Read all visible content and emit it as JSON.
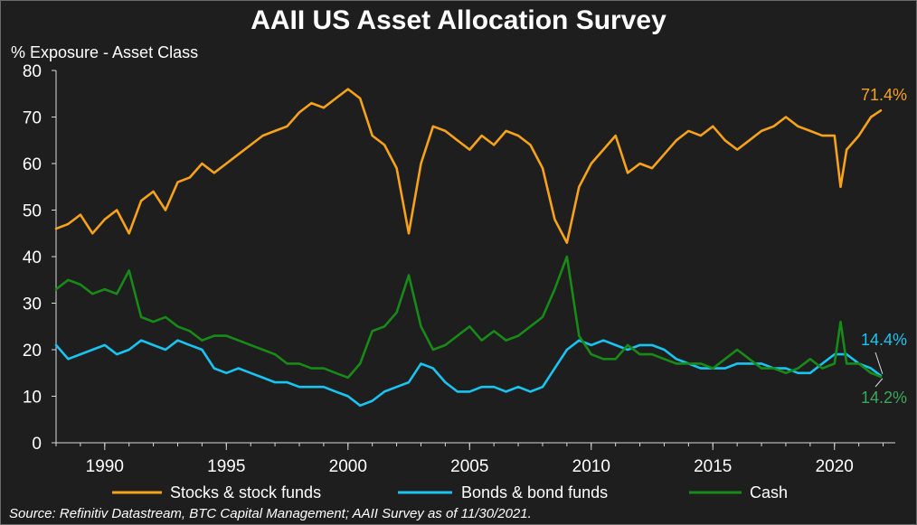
{
  "header": {
    "title": "AAII US Asset Allocation Survey",
    "subtitle": "% Exposure - Asset Class"
  },
  "footer": {
    "source": "Source: Refinitiv Datastream, BTC Capital Management; AAII Survey as of 11/30/2021."
  },
  "colors": {
    "background": "#1e1e1e",
    "stocks": "#f7a21b",
    "bonds": "#19c4f0",
    "cash": "#178a17",
    "cash_label": "#3aa85a"
  },
  "chart_data": {
    "type": "line",
    "title": "AAII US Asset Allocation Survey",
    "ylabel": "% Exposure - Asset Class",
    "xlabel": "",
    "xlim": [
      1988,
      2022.5
    ],
    "ylim": [
      0,
      80
    ],
    "y_ticks": [
      0,
      10,
      20,
      30,
      40,
      50,
      60,
      70,
      80
    ],
    "x_ticks": [
      1990,
      1995,
      2000,
      2005,
      2010,
      2015,
      2020
    ],
    "grid": false,
    "legend_position": "bottom",
    "annotations": [
      {
        "text": "71.4%",
        "series": "Stocks & stock funds"
      },
      {
        "text": "14.4%",
        "series": "Bonds & bond funds"
      },
      {
        "text": "14.2%",
        "series": "Cash"
      }
    ],
    "series": [
      {
        "name": "Stocks & stock funds",
        "color": "#f7a21b",
        "x": [
          1988,
          1988.5,
          1989,
          1989.5,
          1990,
          1990.5,
          1991,
          1991.5,
          1992,
          1992.5,
          1993,
          1993.5,
          1994,
          1994.5,
          1995,
          1995.5,
          1996,
          1996.5,
          1997,
          1997.5,
          1998,
          1998.5,
          1999,
          1999.5,
          2000,
          2000.5,
          2001,
          2001.5,
          2002,
          2002.5,
          2003,
          2003.5,
          2004,
          2004.5,
          2005,
          2005.5,
          2006,
          2006.5,
          2007,
          2007.5,
          2008,
          2008.5,
          2009,
          2009.5,
          2010,
          2010.5,
          2011,
          2011.5,
          2012,
          2012.5,
          2013,
          2013.5,
          2014,
          2014.5,
          2015,
          2015.5,
          2016,
          2016.5,
          2017,
          2017.5,
          2018,
          2018.5,
          2019,
          2019.5,
          2020,
          2020.25,
          2020.5,
          2021,
          2021.5,
          2021.9
        ],
        "y": [
          46,
          47,
          49,
          45,
          48,
          50,
          45,
          52,
          54,
          50,
          56,
          57,
          60,
          58,
          60,
          62,
          64,
          66,
          67,
          68,
          71,
          73,
          72,
          74,
          76,
          74,
          66,
          64,
          59,
          45,
          60,
          68,
          67,
          65,
          63,
          66,
          64,
          67,
          66,
          64,
          59,
          48,
          43,
          55,
          60,
          63,
          66,
          58,
          60,
          59,
          62,
          65,
          67,
          66,
          68,
          65,
          63,
          65,
          67,
          68,
          70,
          68,
          67,
          66,
          66,
          55,
          63,
          66,
          70,
          71.4
        ]
      },
      {
        "name": "Bonds & bond funds",
        "color": "#19c4f0",
        "x": [
          1988,
          1988.5,
          1989,
          1989.5,
          1990,
          1990.5,
          1991,
          1991.5,
          1992,
          1992.5,
          1993,
          1993.5,
          1994,
          1994.5,
          1995,
          1995.5,
          1996,
          1996.5,
          1997,
          1997.5,
          1998,
          1998.5,
          1999,
          1999.5,
          2000,
          2000.5,
          2001,
          2001.5,
          2002,
          2002.5,
          2003,
          2003.5,
          2004,
          2004.5,
          2005,
          2005.5,
          2006,
          2006.5,
          2007,
          2007.5,
          2008,
          2008.5,
          2009,
          2009.5,
          2010,
          2010.5,
          2011,
          2011.5,
          2012,
          2012.5,
          2013,
          2013.5,
          2014,
          2014.5,
          2015,
          2015.5,
          2016,
          2016.5,
          2017,
          2017.5,
          2018,
          2018.5,
          2019,
          2019.5,
          2020,
          2020.5,
          2021,
          2021.5,
          2021.9
        ],
        "y": [
          21,
          18,
          19,
          20,
          21,
          19,
          20,
          22,
          21,
          20,
          22,
          21,
          20,
          16,
          15,
          16,
          15,
          14,
          13,
          13,
          12,
          12,
          12,
          11,
          10,
          8,
          9,
          11,
          12,
          13,
          17,
          16,
          13,
          11,
          11,
          12,
          12,
          11,
          12,
          11,
          12,
          16,
          20,
          22,
          21,
          22,
          21,
          20,
          21,
          21,
          20,
          18,
          17,
          16,
          16,
          16,
          17,
          17,
          17,
          16,
          16,
          15,
          15,
          17,
          19,
          19,
          17,
          16,
          14.4
        ]
      },
      {
        "name": "Cash",
        "color": "#178a17",
        "x": [
          1988,
          1988.5,
          1989,
          1989.5,
          1990,
          1990.5,
          1991,
          1991.5,
          1992,
          1992.5,
          1993,
          1993.5,
          1994,
          1994.5,
          1995,
          1995.5,
          1996,
          1996.5,
          1997,
          1997.5,
          1998,
          1998.5,
          1999,
          1999.5,
          2000,
          2000.5,
          2001,
          2001.5,
          2002,
          2002.5,
          2003,
          2003.5,
          2004,
          2004.5,
          2005,
          2005.5,
          2006,
          2006.5,
          2007,
          2007.5,
          2008,
          2008.5,
          2009,
          2009.5,
          2010,
          2010.5,
          2011,
          2011.5,
          2012,
          2012.5,
          2013,
          2013.5,
          2014,
          2014.5,
          2015,
          2015.5,
          2016,
          2016.5,
          2017,
          2017.5,
          2018,
          2018.5,
          2019,
          2019.5,
          2020,
          2020.25,
          2020.5,
          2021,
          2021.5,
          2021.9
        ],
        "y": [
          33,
          35,
          34,
          32,
          33,
          32,
          37,
          27,
          26,
          27,
          25,
          24,
          22,
          23,
          23,
          22,
          21,
          20,
          19,
          17,
          17,
          16,
          16,
          15,
          14,
          17,
          24,
          25,
          28,
          36,
          25,
          20,
          21,
          23,
          25,
          22,
          24,
          22,
          23,
          25,
          27,
          33,
          40,
          23,
          19,
          18,
          18,
          21,
          19,
          19,
          18,
          17,
          17,
          17,
          16,
          18,
          20,
          18,
          16,
          16,
          15,
          16,
          18,
          16,
          17,
          26,
          17,
          17,
          15,
          14.2
        ]
      }
    ]
  }
}
